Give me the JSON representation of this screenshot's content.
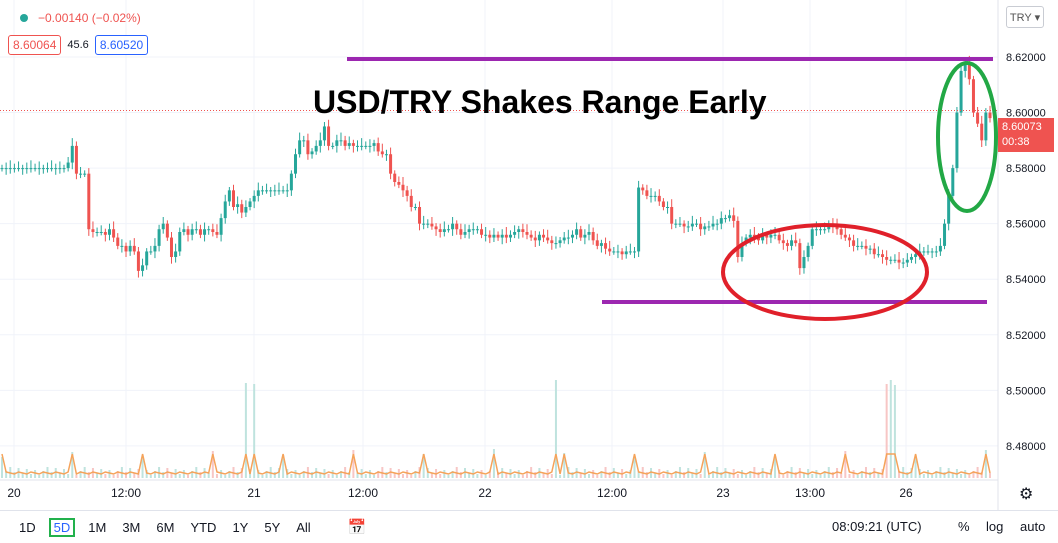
{
  "header": {
    "change": "−0.00140 (−0.02%)",
    "bid": "8.60064",
    "spread": "45.6",
    "ask": "8.60520",
    "currency_button": "TRY ▾"
  },
  "current_price": {
    "value": "8.60073",
    "countdown": "00:38"
  },
  "toolbar": {
    "ranges": [
      "1D",
      "5D",
      "1M",
      "3M",
      "6M",
      "YTD",
      "1Y",
      "5Y",
      "All"
    ],
    "active_range": "5D",
    "time": "08:09:21 (UTC)",
    "percent": "%",
    "log": "log",
    "auto": "auto"
  },
  "colors": {
    "up": "#26a69a",
    "down": "#ef5350",
    "level_line": "#9c27b0",
    "red_ellipse": "#e0202a",
    "green_ellipse": "#22a845",
    "volume_ma": "#f5a35a"
  },
  "chart_data": {
    "type": "candlestick",
    "title": "USD/TRY Shakes Range Early",
    "x_tick_labels": [
      "20",
      "12:00",
      "21",
      "12:00",
      "22",
      "12:00",
      "23",
      "13:00",
      "26"
    ],
    "y_tick_labels": [
      "8.62000",
      "8.60000",
      "8.58000",
      "8.56000",
      "8.54000",
      "8.52000",
      "8.50000",
      "8.48000"
    ],
    "ylim": [
      8.4706,
      8.6326
    ],
    "series_close": [
      8.58,
      8.58,
      8.58,
      8.58,
      8.58,
      8.58,
      8.58,
      8.58,
      8.58,
      8.58,
      8.58,
      8.58,
      8.58,
      8.58,
      8.58,
      8.58,
      8.582,
      8.588,
      8.578,
      8.578,
      8.578,
      8.558,
      8.557,
      8.557,
      8.557,
      8.556,
      8.558,
      8.555,
      8.552,
      8.552,
      8.55,
      8.552,
      8.55,
      8.543,
      8.545,
      8.55,
      8.55,
      8.552,
      8.558,
      8.56,
      8.555,
      8.548,
      8.55,
      8.557,
      8.558,
      8.556,
      8.558,
      8.558,
      8.556,
      8.558,
      8.558,
      8.557,
      8.556,
      8.562,
      8.568,
      8.572,
      8.566,
      8.567,
      8.564,
      8.566,
      8.568,
      8.57,
      8.572,
      8.572,
      8.572,
      8.572,
      8.572,
      8.572,
      8.572,
      8.572,
      8.578,
      8.585,
      8.59,
      8.59,
      8.585,
      8.586,
      8.588,
      8.59,
      8.595,
      8.588,
      8.588,
      8.59,
      8.59,
      8.588,
      8.589,
      8.588,
      8.588,
      8.588,
      8.588,
      8.588,
      8.589,
      8.586,
      8.585,
      8.585,
      8.578,
      8.575,
      8.574,
      8.572,
      8.57,
      8.566,
      8.566,
      8.56,
      8.56,
      8.56,
      8.559,
      8.558,
      8.557,
      8.558,
      8.558,
      8.56,
      8.558,
      8.556,
      8.557,
      8.558,
      8.558,
      8.558,
      8.556,
      8.556,
      8.555,
      8.556,
      8.555,
      8.556,
      8.555,
      8.556,
      8.557,
      8.558,
      8.557,
      8.556,
      8.555,
      8.554,
      8.556,
      8.555,
      8.554,
      8.553,
      8.553,
      8.554,
      8.555,
      8.555,
      8.556,
      8.558,
      8.555,
      8.556,
      8.557,
      8.554,
      8.552,
      8.553,
      8.551,
      8.55,
      8.55,
      8.55,
      8.549,
      8.55,
      8.55,
      8.55,
      8.573,
      8.572,
      8.57,
      8.57,
      8.57,
      8.568,
      8.566,
      8.566,
      8.56,
      8.56,
      8.56,
      8.559,
      8.559,
      8.56,
      8.56,
      8.558,
      8.559,
      8.559,
      8.56,
      8.56,
      8.562,
      8.562,
      8.563,
      8.561,
      8.548,
      8.553,
      8.555,
      8.556,
      8.555,
      8.554,
      8.556,
      8.555,
      8.556,
      8.556,
      8.554,
      8.553,
      8.552,
      8.554,
      8.553,
      8.544,
      8.548,
      8.552,
      8.558,
      8.558,
      8.558,
      8.558,
      8.56,
      8.559,
      8.558,
      8.556,
      8.555,
      8.554,
      8.552,
      8.552,
      8.552,
      8.551,
      8.551,
      8.549,
      8.549,
      8.548,
      8.547,
      8.547,
      8.547,
      8.546,
      8.546,
      8.547,
      8.548,
      8.549,
      8.55,
      8.55,
      8.55,
      8.55,
      8.55,
      8.552,
      8.56,
      8.57,
      8.58,
      8.6,
      8.615,
      8.618,
      8.612,
      8.6,
      8.596,
      8.59,
      8.6,
      8.598
    ]
  }
}
